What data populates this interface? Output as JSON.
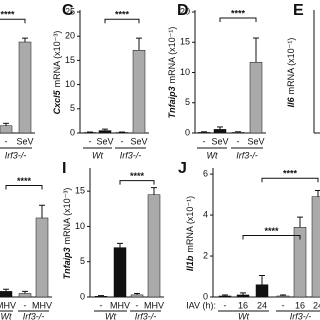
{
  "chart_data": [
    {
      "type": "bar",
      "categories": [
        "-",
        "SeV"
      ],
      "values": [
        1.5,
        18.8
      ],
      "errors": [
        0.5,
        0.8
      ],
      "colors": [
        "#aaaaaa",
        "#aaaaaa"
      ],
      "ylim": [
        0,
        25
      ],
      "groups": [
        {
          "label": "Irf3-/-",
          "span": [
            0,
            1
          ]
        }
      ],
      "brackets": [
        {
          "to": 1,
          "value": 23.5,
          "label": "****"
        }
      ]
    },
    {
      "type": "bar",
      "letter": "C",
      "y_gene": "Cxcl5",
      "y_unit": "mRNA (x10⁻³)",
      "categories": [
        "-",
        "SeV",
        "-",
        "SeV"
      ],
      "values": [
        0.1,
        0.5,
        0.1,
        17.1
      ],
      "errors": [
        0.1,
        0.3,
        0.1,
        2.5
      ],
      "colors": [
        "#111111",
        "#111111",
        "#aaaaaa",
        "#aaaaaa"
      ],
      "ylim": [
        0,
        25
      ],
      "yticks": [
        0,
        5,
        10,
        15,
        20,
        25
      ],
      "groups": [
        {
          "label": "Wt",
          "span": [
            0,
            1
          ]
        },
        {
          "label": "Irf3-/-",
          "span": [
            2,
            3
          ]
        }
      ],
      "brackets": [
        {
          "from": 1,
          "to": 3,
          "value": 23.5,
          "label": "****"
        }
      ]
    },
    {
      "type": "bar",
      "letter": "D",
      "y_gene": "Tnfaip3",
      "y_unit": "mRNA (x10⁻¹)",
      "categories": [
        "-",
        "SeV",
        "-",
        "SeV"
      ],
      "values": [
        0.1,
        0.6,
        0.1,
        11.7
      ],
      "errors": [
        0.1,
        0.4,
        0.1,
        4
      ],
      "colors": [
        "#111111",
        "#111111",
        "#aaaaaa",
        "#aaaaaa"
      ],
      "ylim": [
        0,
        20
      ],
      "yticks": [
        0,
        5,
        10,
        15,
        20
      ],
      "groups": [
        {
          "label": "Wt",
          "span": [
            0,
            1
          ]
        },
        {
          "label": "Irf3-/-",
          "span": [
            2,
            3
          ]
        }
      ],
      "brackets": [
        {
          "from": 1,
          "to": 3,
          "value": 19,
          "label": "****"
        }
      ]
    },
    {
      "type": "bar",
      "letter": "E",
      "y_gene": "Il6",
      "y_unit": "mRNA (x10⁻¹)",
      "categories": [],
      "values": [],
      "errors": [],
      "colors": [],
      "ylim": [
        0,
        20
      ],
      "groups": [],
      "brackets": []
    },
    {
      "type": "bar",
      "categories": [
        "MHV",
        "-",
        "MHV"
      ],
      "values": [
        0.8,
        0.5,
        11.2
      ],
      "errors": [
        0.3,
        0.3,
        1.8
      ],
      "colors": [
        "#111111",
        "#aaaaaa",
        "#aaaaaa"
      ],
      "ylim": [
        0,
        18
      ],
      "groups": [
        {
          "label": "Wt",
          "span": [
            0,
            0
          ]
        },
        {
          "label": "Irf3-/-",
          "span": [
            1,
            2
          ]
        }
      ],
      "brackets": [
        {
          "from": 0,
          "to": 2,
          "value": 15.8,
          "label": "****"
        }
      ]
    },
    {
      "type": "bar",
      "letter": "I",
      "y_gene": "Tnfaip3",
      "y_unit": "mRNA (x10⁻³)",
      "categories": [
        "-",
        "MHV",
        "-",
        "MHV"
      ],
      "values": [
        0.1,
        7,
        0.3,
        14.5
      ],
      "errors": [
        0.1,
        0.6,
        0.2,
        1
      ],
      "colors": [
        "#111111",
        "#111111",
        "#aaaaaa",
        "#aaaaaa"
      ],
      "ylim": [
        0,
        18
      ],
      "yticks": [
        0,
        5,
        10,
        15
      ],
      "groups": [
        {
          "label": "Wt",
          "span": [
            0,
            1
          ]
        },
        {
          "label": "Irf3-/-",
          "span": [
            2,
            3
          ]
        }
      ],
      "brackets": [
        {
          "from": 1,
          "to": 3,
          "value": 16.5,
          "label": "****"
        }
      ]
    },
    {
      "type": "bar",
      "letter": "J",
      "y_gene": "Il1b",
      "y_unit": "mRNA (x10⁻¹)",
      "x_prefix": "IAV (h):",
      "categories": [
        "-",
        "16",
        "24",
        "-",
        "16",
        "24"
      ],
      "values": [
        0.05,
        0.1,
        0.6,
        0.05,
        3.4,
        4.9
      ],
      "errors": [
        0.05,
        0.1,
        0.45,
        0.05,
        0.5,
        0.3
      ],
      "colors": [
        "#111111",
        "#111111",
        "#111111",
        "#aaaaaa",
        "#aaaaaa",
        "#aaaaaa"
      ],
      "ylim": [
        0,
        6.2
      ],
      "yticks": [
        0,
        2,
        4,
        6
      ],
      "groups": [
        {
          "label": "Wt",
          "span": [
            0,
            2
          ]
        },
        {
          "label": "Irf3-/-",
          "span": [
            3,
            5
          ]
        }
      ],
      "brackets": [
        {
          "from": 2,
          "to": 5,
          "value": 5.8,
          "label": "****"
        },
        {
          "from": 1,
          "to": 4,
          "value": 3.0,
          "label": "****"
        }
      ]
    }
  ]
}
